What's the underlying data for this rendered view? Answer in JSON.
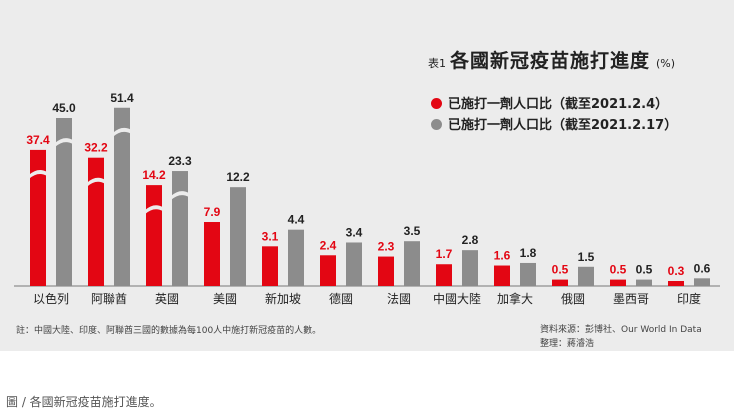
{
  "title": {
    "prefix": "表1",
    "main": "各國新冠疫苗施打進度",
    "unit": "(%)"
  },
  "legend": [
    {
      "label": "已施打一劑人口比（截至2021.2.4）",
      "color": "#e30613"
    },
    {
      "label": "已施打一劑人口比（截至2021.2.17）",
      "color": "#8c8c8c"
    }
  ],
  "note": "註：中國大陸、印度、阿聯酋三國的數據為每100人中施打新冠疫苗的人數。",
  "source": {
    "line1": "資料來源：彭博社、Our World In Data",
    "line2": "整理：蔣濬浩"
  },
  "caption": "圖 / 各國新冠疫苗施打進度。",
  "chart_data": {
    "type": "bar",
    "categories": [
      "以色列",
      "阿聯酋",
      "英國",
      "美國",
      "新加坡",
      "德國",
      "法國",
      "中國大陸",
      "加拿大",
      "俄國",
      "墨西哥",
      "印度"
    ],
    "series": [
      {
        "name": "已施打一劑人口比（截至2021.2.4）",
        "color": "#e30613",
        "values": [
          37.4,
          32.2,
          14.2,
          7.9,
          3.1,
          2.4,
          2.3,
          1.7,
          1.6,
          0.5,
          0.5,
          0.3
        ]
      },
      {
        "name": "已施打一劑人口比（截至2021.2.17）",
        "color": "#8c8c8c",
        "values": [
          45.0,
          51.4,
          23.3,
          12.2,
          4.4,
          3.4,
          3.5,
          2.8,
          1.8,
          1.5,
          0.5,
          0.6
        ]
      }
    ],
    "value_labels": [
      [
        "37.4",
        "32.2",
        "14.2",
        "7.9",
        "3.1",
        "2.4",
        "2.3",
        "1.7",
        "1.6",
        "0.5",
        "0.5",
        "0.3"
      ],
      [
        "45.0",
        "51.4",
        "23.3",
        "12.2",
        "4.4",
        "3.4",
        "3.5",
        "2.8",
        "1.8",
        "1.5",
        "0.5",
        "0.6"
      ]
    ],
    "axis_breaks": [
      "以色列",
      "阿聯酋",
      "英國"
    ],
    "legend_position": "top-right",
    "grid": false
  }
}
